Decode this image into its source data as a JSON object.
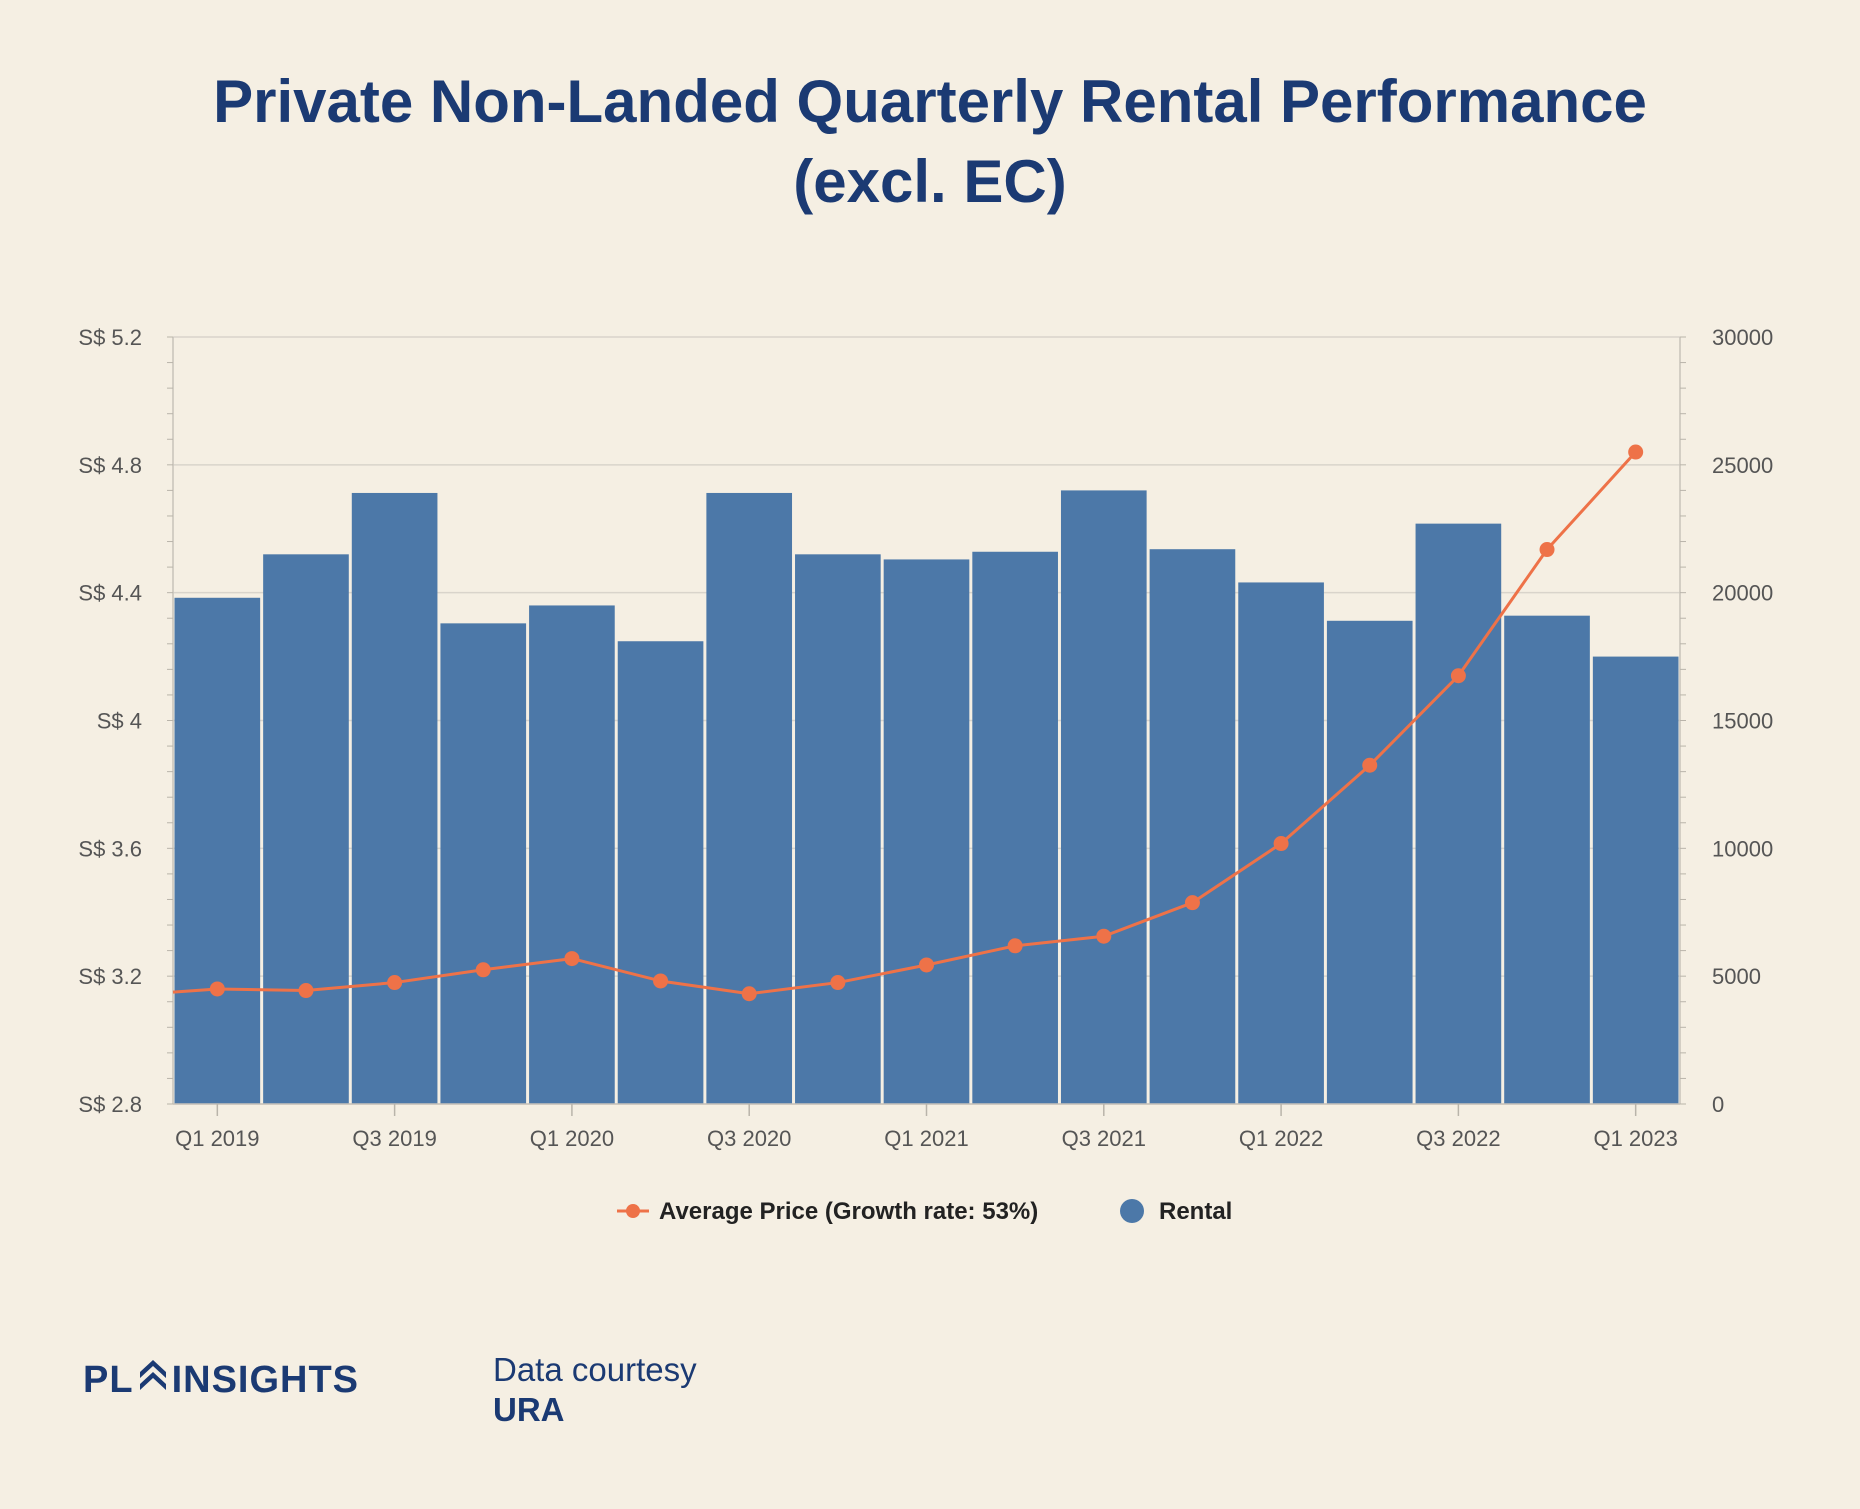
{
  "title": {
    "line1": "Private Non-Landed Quarterly Rental Performance",
    "line2": "(excl. EC)"
  },
  "colors": {
    "background": "#f5efe3",
    "title": "#1b3a73",
    "bar": "#4c78a8",
    "line": "#ee7248",
    "axis_text": "#555555",
    "grid": "#d9d4cb"
  },
  "chart_data": {
    "type": "bar",
    "categories": [
      "Q1 2019",
      "Q2 2019",
      "Q3 2019",
      "Q4 2019",
      "Q1 2020",
      "Q2 2020",
      "Q3 2020",
      "Q4 2020",
      "Q1 2021",
      "Q2 2021",
      "Q3 2021",
      "Q4 2021",
      "Q1 2022",
      "Q2 2022",
      "Q3 2022",
      "Q4 2022",
      "Q1 2023"
    ],
    "x_tick_labels": [
      "Q1 2019",
      "Q3 2019",
      "Q1 2020",
      "Q3 2020",
      "Q1 2021",
      "Q3 2021",
      "Q1 2022",
      "Q3 2022",
      "Q1 2023"
    ],
    "series": [
      {
        "name": "Rental",
        "type": "bar",
        "axis": "right",
        "values": [
          19800,
          21500,
          23900,
          18800,
          19500,
          18100,
          23900,
          21500,
          21300,
          21600,
          24000,
          21700,
          20400,
          18900,
          22700,
          19100,
          17500
        ]
      },
      {
        "name": "Average Price (Growth rate: 53%)",
        "type": "line",
        "axis": "left",
        "values": [
          3.16,
          3.155,
          3.18,
          3.22,
          3.255,
          3.185,
          3.145,
          3.18,
          3.235,
          3.295,
          3.325,
          3.43,
          3.615,
          3.86,
          4.14,
          4.535,
          4.84
        ]
      }
    ],
    "y_left": {
      "ylim": [
        2.8,
        5.2
      ],
      "ticks": [
        2.8,
        3.2,
        3.6,
        4.0,
        4.4,
        4.8,
        5.2
      ],
      "tick_labels": [
        "S$ 2.8",
        "S$ 3.2",
        "S$ 3.6",
        "S$ 4",
        "S$ 4.4",
        "S$ 4.8",
        "S$ 5.2"
      ]
    },
    "y_right": {
      "ylim": [
        0,
        30000
      ],
      "ticks": [
        0,
        5000,
        10000,
        15000,
        20000,
        25000,
        30000
      ],
      "tick_labels": [
        "0",
        "5000",
        "10000",
        "15000",
        "20000",
        "25000",
        "30000"
      ]
    },
    "grid": true,
    "legend_placement": "bottom-center",
    "legend": [
      "Average Price (Growth rate: 53%)",
      "Rental"
    ]
  },
  "footer": {
    "logo_left": "PL",
    "logo_right": "INSIGHTS",
    "credit_line1": "Data courtesy",
    "credit_line2": "URA"
  }
}
